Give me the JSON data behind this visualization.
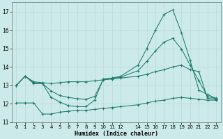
{
  "xlabel": "Humidex (Indice chaleur)",
  "background_color": "#cdeaea",
  "grid_color": "#b8d8d8",
  "line_color": "#1e7b6e",
  "x_ticks": [
    0,
    1,
    2,
    3,
    4,
    5,
    6,
    7,
    8,
    9,
    10,
    11,
    12,
    14,
    15,
    16,
    17,
    18,
    19,
    20,
    21,
    22,
    23
  ],
  "x_tick_labels": [
    "0",
    "1",
    "2",
    "3",
    "4",
    "5",
    "6",
    "7",
    "8",
    "9",
    "10",
    "11",
    "12",
    "14",
    "15",
    "16",
    "17",
    "18",
    "19",
    "20",
    "21",
    "22",
    "23"
  ],
  "ylim": [
    11,
    17.5
  ],
  "xlim": [
    -0.5,
    23.5
  ],
  "yticks": [
    11,
    12,
    13,
    14,
    15,
    16,
    17
  ],
  "ytick_labels": [
    "11",
    "12",
    "13",
    "14",
    "15",
    "16",
    "17"
  ],
  "line1_x": [
    0,
    1,
    2,
    3,
    4,
    5,
    6,
    7,
    8,
    9,
    10,
    11,
    12,
    14,
    15,
    16,
    17,
    18,
    19,
    20,
    21,
    22,
    23
  ],
  "line1_y": [
    13.0,
    13.5,
    13.1,
    13.1,
    12.35,
    12.1,
    11.9,
    11.85,
    11.85,
    12.2,
    13.35,
    13.4,
    13.5,
    14.1,
    15.0,
    16.0,
    16.85,
    17.1,
    15.85,
    14.35,
    12.75,
    12.5,
    12.3
  ],
  "line2_x": [
    0,
    1,
    2,
    3,
    4,
    5,
    6,
    7,
    8,
    9,
    10,
    11,
    12,
    14,
    15,
    16,
    17,
    18,
    19,
    20,
    21,
    22,
    23
  ],
  "line2_y": [
    13.0,
    13.5,
    13.2,
    13.15,
    13.1,
    13.15,
    13.2,
    13.2,
    13.2,
    13.25,
    13.3,
    13.35,
    13.4,
    13.5,
    13.6,
    13.75,
    13.85,
    14.0,
    14.1,
    13.85,
    13.75,
    12.3,
    12.25
  ],
  "line3_x": [
    0,
    1,
    2,
    3,
    4,
    5,
    6,
    7,
    8,
    9,
    10,
    11,
    12,
    14,
    15,
    16,
    17,
    18,
    19,
    20,
    21,
    22,
    23
  ],
  "line3_y": [
    13.0,
    13.5,
    13.15,
    13.1,
    12.7,
    12.45,
    12.35,
    12.28,
    12.25,
    12.4,
    13.32,
    13.38,
    13.45,
    13.8,
    14.3,
    14.87,
    15.35,
    15.55,
    14.97,
    14.1,
    13.25,
    12.4,
    12.28
  ],
  "line4_x": [
    0,
    1,
    2,
    3,
    4,
    5,
    6,
    7,
    8,
    9,
    10,
    11,
    12,
    14,
    15,
    16,
    17,
    18,
    19,
    20,
    21,
    22,
    23
  ],
  "line4_y": [
    12.05,
    12.05,
    12.05,
    11.45,
    11.45,
    11.55,
    11.6,
    11.65,
    11.65,
    11.7,
    11.75,
    11.8,
    11.85,
    11.95,
    12.05,
    12.15,
    12.2,
    12.3,
    12.35,
    12.3,
    12.25,
    12.2,
    12.2
  ]
}
